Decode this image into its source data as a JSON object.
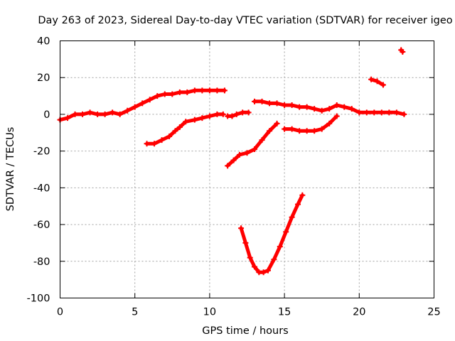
{
  "chart_data": {
    "type": "scatter",
    "title": "Day 263 of 2023, Sidereal Day-to-day VTEC variation (SDTVAR) for receiver igeo",
    "xlabel": "GPS time / hours",
    "ylabel": "SDTVAR / TECUs",
    "xlim": [
      0,
      25
    ],
    "ylim": [
      -100,
      40
    ],
    "xticks": [
      0,
      5,
      10,
      15,
      20,
      25
    ],
    "yticks": [
      -100,
      -80,
      -60,
      -40,
      -20,
      0,
      20,
      40
    ],
    "grid": true,
    "legend": "none",
    "series_color": "#ff0000",
    "series": [
      {
        "name": "track-1",
        "x": [
          0.0,
          0.5,
          1.0,
          1.5,
          2.0,
          2.5,
          3.0,
          3.5,
          4.0,
          4.5,
          5.0,
          5.5,
          6.0,
          6.5,
          7.0,
          7.5,
          8.0,
          8.5,
          9.0,
          9.5,
          10.0,
          10.5,
          11.0
        ],
        "y": [
          -3,
          -2,
          0,
          0,
          1,
          0,
          0,
          1,
          0,
          2,
          4,
          6,
          8,
          10,
          11,
          11,
          12,
          12,
          13,
          13,
          13,
          13,
          13
        ]
      },
      {
        "name": "track-2",
        "x": [
          5.8,
          6.3,
          6.8,
          7.3,
          7.7,
          8.0,
          8.4,
          9.0,
          9.5,
          10.0,
          10.5,
          10.9
        ],
        "y": [
          -16,
          -16,
          -14,
          -12,
          -9,
          -7,
          -4,
          -3,
          -2,
          -1,
          0,
          0
        ]
      },
      {
        "name": "track-3",
        "x": [
          11.2,
          11.5,
          11.8,
          12.2,
          12.6
        ],
        "y": [
          -1,
          -1,
          0,
          1,
          1
        ]
      },
      {
        "name": "track-4",
        "x": [
          11.2,
          11.6,
          12.0,
          12.5,
          13.0,
          13.5,
          14.0,
          14.5
        ],
        "y": [
          -28,
          -25,
          -22,
          -21,
          -19,
          -14,
          -9,
          -5
        ]
      },
      {
        "name": "track-5",
        "x": [
          12.1,
          12.4,
          12.7,
          13.0,
          13.3,
          13.6,
          13.9,
          14.3,
          14.7,
          15.1,
          15.5,
          15.9,
          16.2
        ],
        "y": [
          -62,
          -70,
          -78,
          -83,
          -86,
          -86,
          -85,
          -79,
          -72,
          -64,
          -56,
          -49,
          -44
        ]
      },
      {
        "name": "track-6",
        "x": [
          13.0,
          13.5,
          14.0,
          14.5,
          15.0,
          15.5,
          16.0,
          16.5,
          17.0,
          17.5,
          18.0,
          18.5,
          19.0,
          19.5,
          20.0,
          20.5,
          21.0,
          21.5,
          22.0,
          22.5,
          23.0
        ],
        "y": [
          7,
          7,
          6,
          6,
          5,
          5,
          4,
          4,
          3,
          2,
          3,
          5,
          4,
          3,
          1,
          1,
          1,
          1,
          1,
          1,
          0
        ]
      },
      {
        "name": "track-7",
        "x": [
          15.0,
          15.5,
          16.0,
          16.5,
          17.0,
          17.5,
          18.0,
          18.5
        ],
        "y": [
          -8,
          -8,
          -9,
          -9,
          -9,
          -8,
          -5,
          -1
        ]
      },
      {
        "name": "track-8",
        "x": [
          20.8,
          21.2,
          21.6
        ],
        "y": [
          19,
          18,
          16
        ]
      },
      {
        "name": "track-9",
        "x": [
          22.8,
          22.9
        ],
        "y": [
          35,
          34
        ]
      }
    ]
  }
}
